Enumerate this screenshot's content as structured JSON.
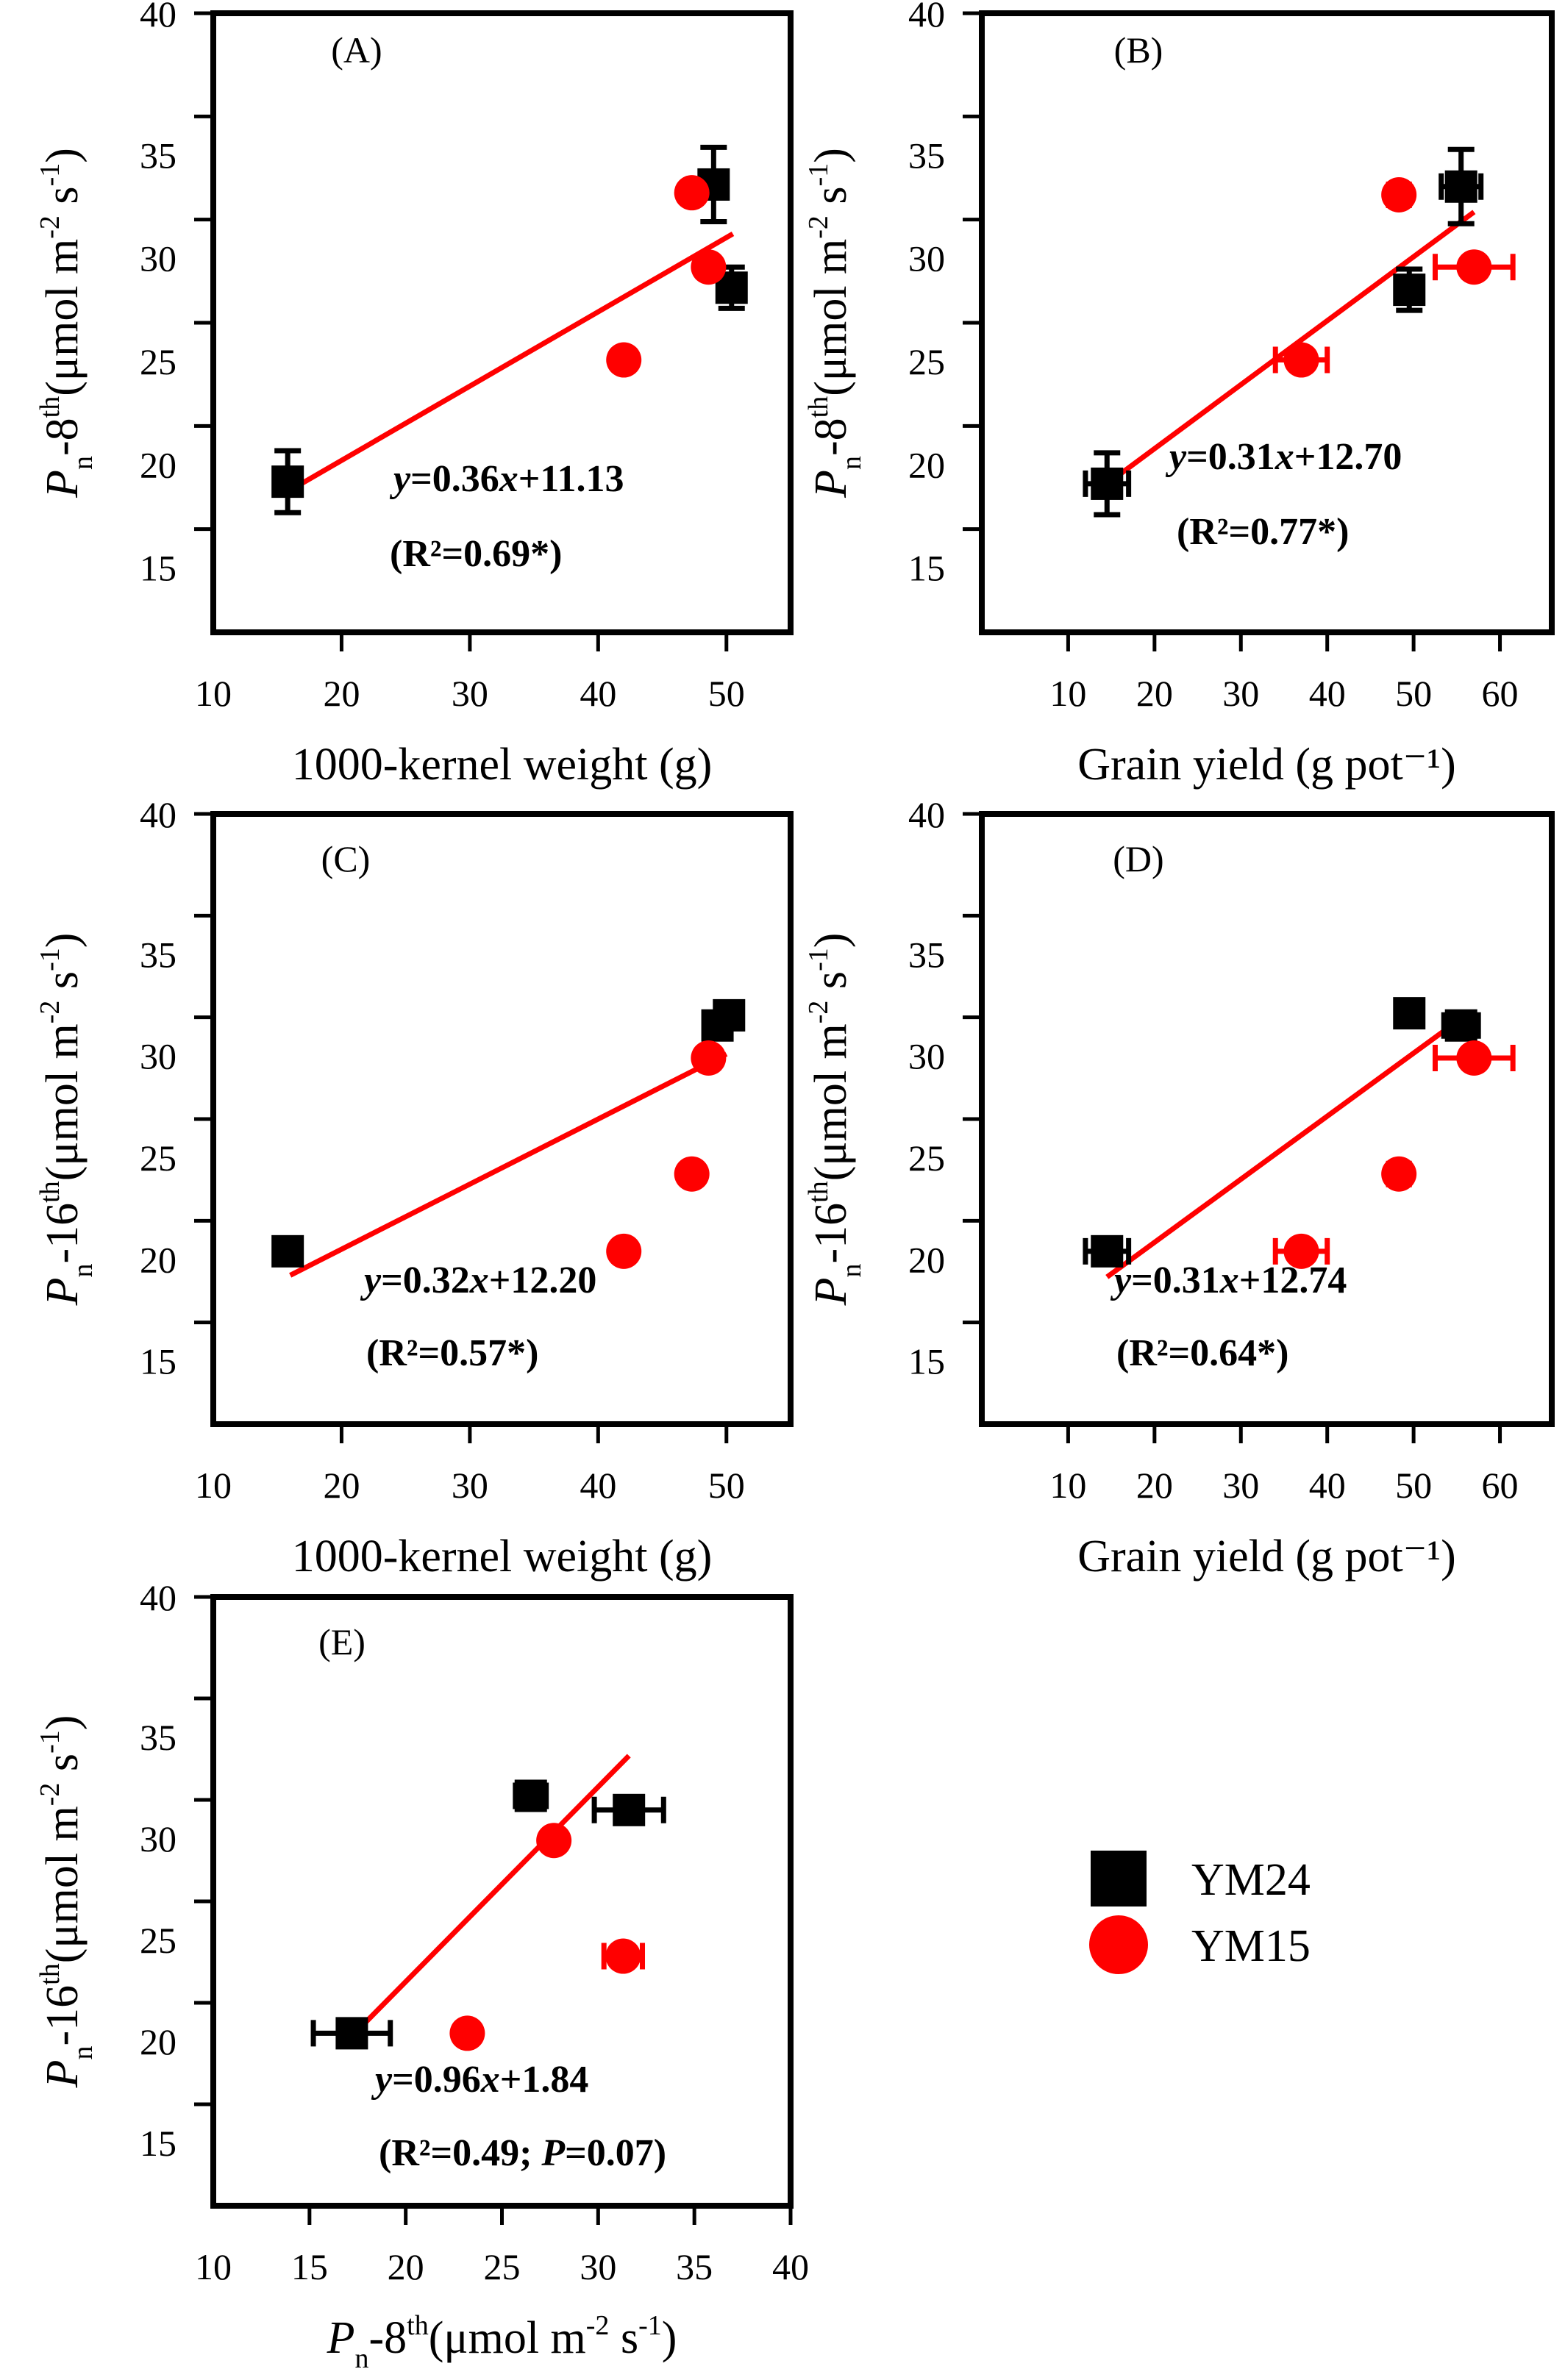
{
  "figure": {
    "legend": [
      {
        "label": "YM24",
        "marker": "square",
        "color": "#000000"
      },
      {
        "label": "YM15",
        "marker": "circle",
        "color": "#ff0000"
      }
    ]
  },
  "colors": {
    "YM24": "#000000",
    "YM15": "#ff0000",
    "fit": "#ff0000",
    "axes": "#000000"
  },
  "chart_data": [
    {
      "type": "scatter",
      "panel_label": "(A)",
      "xlabel": "1000-kernel weight (g)",
      "ylabel": {
        "symbol": "P",
        "sub": "n",
        "pre": "-8",
        "sup": "th",
        "post": "(μmol m",
        "sup2": "-2",
        "mid": " s",
        "sup3": "-1",
        "end": ")"
      },
      "xlim": [
        10,
        55
      ],
      "ylim": [
        10,
        40
      ],
      "xticks": [
        10,
        20,
        30,
        40,
        50
      ],
      "yticks": [
        15,
        20,
        25,
        30,
        35,
        40
      ],
      "series": [
        {
          "name": "YM24",
          "points": [
            {
              "x": 15.8,
              "y": 17.3,
              "yerr": 1.5
            },
            {
              "x": 49.0,
              "y": 31.7,
              "yerr": 1.8
            },
            {
              "x": 50.4,
              "y": 26.7,
              "yerr": 1.0
            }
          ]
        },
        {
          "name": "YM15",
          "points": [
            {
              "x": 42.0,
              "y": 23.2
            },
            {
              "x": 47.3,
              "y": 31.3
            },
            {
              "x": 48.6,
              "y": 27.7
            }
          ]
        }
      ],
      "fit": {
        "slope": 0.36,
        "intercept": 11.13,
        "x_range": [
          16,
          50.5
        ]
      },
      "equation": {
        "prefix": "y",
        "body": "=0.36",
        "var": "x",
        "rest": "+11.13"
      },
      "r2": "(R²=0.69*)"
    },
    {
      "type": "scatter",
      "panel_label": "(B)",
      "xlabel": "Grain yield (g pot⁻¹)",
      "ylabel": {
        "symbol": "P",
        "sub": "n",
        "pre": "-8",
        "sup": "th",
        "post": "(μmol m",
        "sup2": "-2",
        "mid": " s",
        "sup3": "-1",
        "end": ")"
      },
      "xlim": [
        0,
        66
      ],
      "ylim": [
        10,
        40
      ],
      "xticks": [
        10,
        20,
        30,
        40,
        50,
        60
      ],
      "yticks": [
        15,
        20,
        25,
        30,
        35,
        40
      ],
      "series": [
        {
          "name": "YM24",
          "points": [
            {
              "x": 14.5,
              "y": 17.2,
              "xerr": 2.5,
              "yerr": 1.5
            },
            {
              "x": 49.5,
              "y": 26.6,
              "xerr": 1.2,
              "yerr": 1.0
            },
            {
              "x": 55.5,
              "y": 31.6,
              "xerr": 2.3,
              "yerr": 1.8
            }
          ]
        },
        {
          "name": "YM15",
          "points": [
            {
              "x": 37.0,
              "y": 23.2,
              "xerr": 3.0
            },
            {
              "x": 48.3,
              "y": 31.2,
              "xerr": 1.2
            },
            {
              "x": 57.0,
              "y": 27.7,
              "xerr": 4.5
            }
          ]
        }
      ],
      "fit": {
        "slope": 0.31,
        "intercept": 12.7,
        "x_range": [
          14.5,
          57
        ]
      },
      "equation": {
        "prefix": "y",
        "body": "=0.31",
        "var": "x",
        "rest": "+12.70"
      },
      "r2": "(R²=0.77*)"
    },
    {
      "type": "scatter",
      "panel_label": "(C)",
      "xlabel": "1000-kernel weight (g)",
      "ylabel": {
        "symbol": "P",
        "sub": "n",
        "pre": "-16",
        "sup": "th",
        "post": "(μmol m",
        "sup2": "-2",
        "mid": " s",
        "sup3": "-1",
        "end": ")"
      },
      "xlim": [
        10,
        55
      ],
      "ylim": [
        10,
        40
      ],
      "xticks": [
        10,
        20,
        30,
        40,
        50
      ],
      "yticks": [
        15,
        20,
        25,
        30,
        35,
        40
      ],
      "series": [
        {
          "name": "YM24",
          "points": [
            {
              "x": 15.8,
              "y": 18.5
            },
            {
              "x": 49.3,
              "y": 29.6
            },
            {
              "x": 50.2,
              "y": 30.1
            }
          ]
        },
        {
          "name": "YM15",
          "points": [
            {
              "x": 42.0,
              "y": 18.5
            },
            {
              "x": 47.3,
              "y": 22.3
            },
            {
              "x": 48.6,
              "y": 28.0
            }
          ]
        }
      ],
      "fit": {
        "slope": 0.32,
        "intercept": 12.2,
        "x_range": [
          16,
          50
        ]
      },
      "equation": {
        "prefix": "y",
        "body": "=0.32",
        "var": "x",
        "rest": "+12.20"
      },
      "r2": "(R²=0.57*)"
    },
    {
      "type": "scatter",
      "panel_label": "(D)",
      "xlabel": "Grain yield (g pot⁻¹)",
      "ylabel": {
        "symbol": "P",
        "sub": "n",
        "pre": "-16",
        "sup": "th",
        "post": "(μmol m",
        "sup2": "-2",
        "mid": " s",
        "sup3": "-1",
        "end": ")"
      },
      "xlim": [
        0,
        66
      ],
      "ylim": [
        10,
        40
      ],
      "xticks": [
        10,
        20,
        30,
        40,
        50,
        60
      ],
      "yticks": [
        15,
        20,
        25,
        30,
        35,
        40
      ],
      "series": [
        {
          "name": "YM24",
          "points": [
            {
              "x": 14.5,
              "y": 18.5,
              "xerr": 2.5
            },
            {
              "x": 49.5,
              "y": 30.2,
              "xerr": 1.2
            },
            {
              "x": 55.5,
              "y": 29.6,
              "xerr": 2.0
            }
          ]
        },
        {
          "name": "YM15",
          "points": [
            {
              "x": 37.0,
              "y": 18.5,
              "xerr": 3.0
            },
            {
              "x": 48.3,
              "y": 22.3,
              "xerr": 1.2
            },
            {
              "x": 57.0,
              "y": 28.0,
              "xerr": 4.5
            }
          ]
        }
      ],
      "fit": {
        "slope": 0.31,
        "intercept": 12.74,
        "x_range": [
          14.5,
          55.5
        ]
      },
      "equation": {
        "prefix": "y",
        "body": "=0.31",
        "var": "x",
        "rest": "+12.74"
      },
      "r2": "(R²=0.64*)"
    },
    {
      "type": "scatter",
      "panel_label": "(E)",
      "xlabel": {
        "symbol": "P",
        "sub": "n",
        "pre": "-8",
        "sup": "th",
        "post": "(μmol m",
        "sup2": "-2",
        "mid": " s",
        "sup3": "-1",
        "end": ")"
      },
      "ylabel": {
        "symbol": "P",
        "sub": "n",
        "pre": "-16",
        "sup": "th",
        "post": "(μmol m",
        "sup2": "-2",
        "mid": " s",
        "sup3": "-1",
        "end": ")"
      },
      "xlim": [
        10,
        40
      ],
      "ylim": [
        10,
        40
      ],
      "xticks": [
        10,
        15,
        20,
        25,
        30,
        35,
        40
      ],
      "yticks": [
        15,
        20,
        25,
        30,
        35,
        40
      ],
      "series": [
        {
          "name": "YM24",
          "points": [
            {
              "x": 17.2,
              "y": 18.5,
              "xerr": 2.0
            },
            {
              "x": 26.5,
              "y": 30.2,
              "xerr": 0.8
            },
            {
              "x": 31.6,
              "y": 29.5,
              "xerr": 1.8
            }
          ]
        },
        {
          "name": "YM15",
          "points": [
            {
              "x": 23.2,
              "y": 18.5
            },
            {
              "x": 27.7,
              "y": 28.0
            },
            {
              "x": 31.3,
              "y": 22.3,
              "xerr": 1.0
            }
          ]
        }
      ],
      "fit": {
        "slope": 0.96,
        "intercept": 1.84,
        "x_range": [
          17.2,
          31.6
        ]
      },
      "equation": {
        "prefix": "y",
        "body": "=0.96",
        "var": "x",
        "rest": "+1.84"
      },
      "r2": "(R²=0.49; P=0.07)"
    }
  ]
}
